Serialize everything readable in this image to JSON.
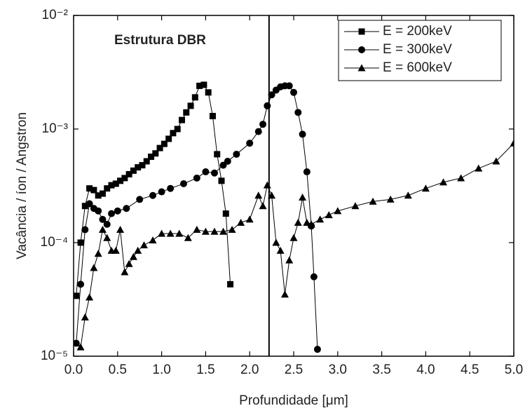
{
  "chart_data": {
    "type": "line",
    "log_y": true,
    "annotation": "Estrutura DBR",
    "xlabel": "Profundidade [μm]",
    "ylabel": "Vacância / íon / Angstron",
    "xlim": [
      0,
      5
    ],
    "ylim": [
      1e-05,
      0.01
    ],
    "xticks": [
      {
        "value": 0,
        "label": "0.0"
      },
      0.5,
      {
        "value": 1,
        "label": "1.0"
      },
      1.5,
      {
        "value": 2,
        "label": "2.0"
      },
      2.5,
      {
        "value": 3,
        "label": "3.0"
      },
      3.5,
      {
        "value": 4,
        "label": "4.0"
      },
      4.5,
      {
        "value": 5,
        "label": "5.0"
      }
    ],
    "yticks": [
      {
        "value": 1e-05,
        "label": "10⁻⁵"
      },
      {
        "value": 0.0001,
        "label": "10⁻⁴"
      },
      {
        "value": 0.001,
        "label": "10⁻³"
      },
      {
        "value": 0.01,
        "label": "10⁻²"
      }
    ],
    "vline": 2.22,
    "legend": "upper right",
    "series": [
      {
        "name": "E = 200keV",
        "color": "#000000",
        "marker": "square",
        "x": [
          0.03,
          0.08,
          0.13,
          0.18,
          0.23,
          0.28,
          0.33,
          0.38,
          0.43,
          0.48,
          0.53,
          0.58,
          0.63,
          0.68,
          0.73,
          0.78,
          0.83,
          0.88,
          0.93,
          0.98,
          1.03,
          1.08,
          1.13,
          1.18,
          1.23,
          1.28,
          1.33,
          1.38,
          1.43,
          1.48,
          1.53,
          1.58,
          1.63,
          1.68,
          1.73,
          1.78
        ],
        "values": [
          3.4e-05,
          0.0001,
          0.00021,
          0.0003,
          0.00029,
          0.00026,
          0.00027,
          0.0003,
          0.00032,
          0.00033,
          0.00035,
          0.00037,
          0.0004,
          0.00043,
          0.00046,
          0.00048,
          0.00052,
          0.00057,
          0.00061,
          0.00068,
          0.00074,
          0.00082,
          0.00092,
          0.001,
          0.0012,
          0.0014,
          0.0016,
          0.0019,
          0.0024,
          0.00245,
          0.0021,
          0.0013,
          0.0006,
          0.00035,
          0.00018,
          4.3e-05
        ]
      },
      {
        "name": "E = 300keV",
        "color": "#000000",
        "marker": "circle",
        "x": [
          0.03,
          0.08,
          0.13,
          0.18,
          0.23,
          0.28,
          0.33,
          0.38,
          0.43,
          0.5,
          0.6,
          0.75,
          0.9,
          1.0,
          1.1,
          1.25,
          1.4,
          1.5,
          1.6,
          1.7,
          1.75,
          1.85,
          2.0,
          2.1,
          2.15,
          2.2,
          2.25,
          2.3,
          2.35,
          2.4,
          2.45,
          2.5,
          2.55,
          2.6,
          2.65,
          2.7,
          2.73,
          2.77
        ],
        "values": [
          1.3e-05,
          4.3e-05,
          0.00013,
          0.00022,
          0.0002,
          0.00019,
          0.00016,
          0.000145,
          0.00018,
          0.00019,
          0.0002,
          0.00024,
          0.00026,
          0.00028,
          0.0003,
          0.00033,
          0.00037,
          0.00042,
          0.00041,
          0.00048,
          0.00052,
          0.0006,
          0.00075,
          0.00095,
          0.0011,
          0.0016,
          0.002,
          0.0022,
          0.00235,
          0.0024,
          0.0024,
          0.0021,
          0.0014,
          0.0009,
          0.00042,
          0.00014,
          5e-05,
          1.15e-05
        ]
      },
      {
        "name": "E = 600keV",
        "color": "#000000",
        "marker": "triangle",
        "x": [
          0.03,
          0.08,
          0.13,
          0.18,
          0.23,
          0.28,
          0.33,
          0.38,
          0.43,
          0.48,
          0.53,
          0.58,
          0.63,
          0.68,
          0.73,
          0.8,
          0.9,
          1.0,
          1.1,
          1.2,
          1.3,
          1.4,
          1.5,
          1.6,
          1.7,
          1.8,
          1.9,
          2.0,
          2.1,
          2.15,
          2.2,
          2.25,
          2.3,
          2.35,
          2.4,
          2.45,
          2.5,
          2.55,
          2.6,
          2.65,
          2.7,
          2.8,
          2.9,
          3.0,
          3.2,
          3.4,
          3.6,
          3.8,
          4.0,
          4.2,
          4.4,
          4.6,
          4.8,
          5.0
        ],
        "values": [
          1.3e-05,
          1.2e-05,
          2.2e-05,
          3.3e-05,
          6e-05,
          8e-05,
          0.00013,
          0.00011,
          8.5e-05,
          8.5e-05,
          0.00013,
          5.5e-05,
          6.5e-05,
          7.5e-05,
          8.5e-05,
          9.5e-05,
          0.000105,
          0.00012,
          0.00012,
          0.00012,
          0.00011,
          0.00013,
          0.000125,
          0.000125,
          0.000125,
          0.00013,
          0.00015,
          0.00016,
          0.00026,
          0.00021,
          0.00032,
          0.00026,
          0.0001,
          8.5e-05,
          3.5e-05,
          7e-05,
          0.00011,
          0.00015,
          0.00025,
          0.00015,
          0.000145,
          0.00016,
          0.000175,
          0.00019,
          0.00021,
          0.00023,
          0.00024,
          0.00026,
          0.0003,
          0.00034,
          0.00037,
          0.00045,
          0.00052,
          0.00075
        ]
      }
    ]
  }
}
